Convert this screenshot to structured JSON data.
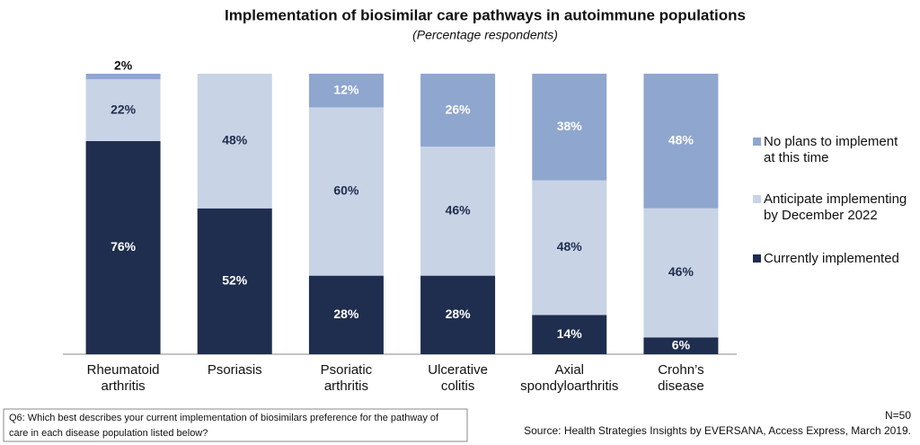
{
  "chart_data": {
    "type": "stacked-bar",
    "title": "Implementation of biosimilar care pathways in autoimmune populations",
    "subtitle": "(Percentage respondents)",
    "categories": [
      "Rheumatoid\narthritis",
      "Psoriasis",
      "Psoriatic\narthritis",
      "Ulcerative\ncolitis",
      "Axial\nspondyloarthritis",
      "Crohn’s\ndisease"
    ],
    "series": [
      {
        "name": "Currently implemented",
        "color": "#1f2d4e",
        "label_color": "#ffffff",
        "values": [
          76,
          52,
          28,
          28,
          14,
          6
        ],
        "value_labels": [
          "76%",
          "52%",
          "28%",
          "28%",
          "14%",
          "6%"
        ]
      },
      {
        "name": "Anticipate implementing\nby December 2022",
        "color": "#c8d3e6",
        "label_color": "#1f2d4e",
        "values": [
          22,
          48,
          60,
          46,
          48,
          46
        ],
        "value_labels": [
          "22%",
          "48%",
          "60%",
          "46%",
          "48%",
          "46%"
        ]
      },
      {
        "name": "No plans to implement\nat this time",
        "color": "#8fa6cf",
        "label_color": "#ffffff",
        "values": [
          2,
          0,
          12,
          26,
          38,
          48
        ],
        "value_labels": [
          "2%",
          null,
          "12%",
          "26%",
          "38%",
          "48%"
        ]
      }
    ],
    "ylim": [
      0,
      100
    ],
    "legend": "right",
    "question": "Q6: Which best describes your current implementation of biosimilars preference for the pathway of\ncare in each disease population listed below?",
    "sample": "N=50",
    "source": "Source: Health Strategies Insights by EVERSANA, Access Express, March 2019."
  }
}
